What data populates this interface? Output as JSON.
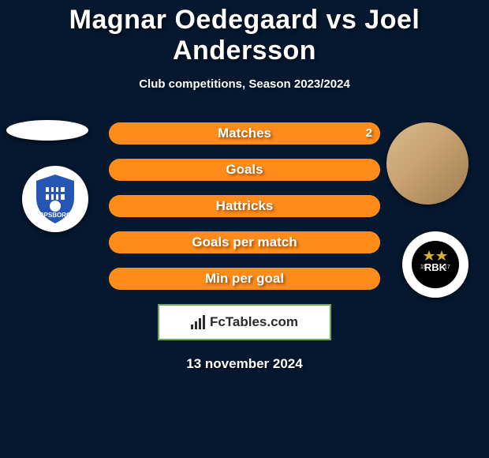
{
  "background_color": "#05182f",
  "title": "Magnar Oedegaard vs Joel Andersson",
  "title_fontsize": 34,
  "subtitle": "Club competitions, Season 2023/2024",
  "player_left": {
    "name": "Magnar Oedegaard",
    "club_badge": {
      "shield_color": "#2656b3",
      "text": "RPSBORG",
      "text_color": "#ffffff"
    }
  },
  "player_right": {
    "name": "Joel Andersson",
    "club_badge": {
      "circle_color": "#000000",
      "text": "RBK",
      "text_color": "#ffffff",
      "star_color": "#d4af37"
    }
  },
  "bars": {
    "track_color": "#6fa84f",
    "fill_left_color": "#ff8c1a",
    "fill_right_color": "#ff8c1a",
    "label_color": "#ffffff",
    "rows": [
      {
        "label": "Matches",
        "left_val": "",
        "right_val": "2",
        "left_pct": 0,
        "right_pct": 100
      },
      {
        "label": "Goals",
        "left_val": "",
        "right_val": "",
        "left_pct": 0,
        "right_pct": 100
      },
      {
        "label": "Hattricks",
        "left_val": "",
        "right_val": "",
        "left_pct": 0,
        "right_pct": 100
      },
      {
        "label": "Goals per match",
        "left_val": "",
        "right_val": "",
        "left_pct": 0,
        "right_pct": 100
      },
      {
        "label": "Min per goal",
        "left_val": "",
        "right_val": "",
        "left_pct": 0,
        "right_pct": 100
      }
    ]
  },
  "logo": {
    "text": "FcTables.com",
    "border_color": "#6fa84f",
    "background": "#ffffff",
    "text_color": "#2b2b2b"
  },
  "date": "13 november 2024"
}
